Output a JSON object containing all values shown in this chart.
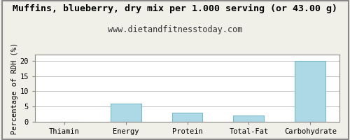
{
  "title": "Muffins, blueberry, dry mix per 1.000 serving (or 43.00 g)",
  "subtitle": "www.dietandfitnesstoday.com",
  "categories": [
    "Thiamin",
    "Energy",
    "Protein",
    "Total-Fat",
    "Carbohydrate"
  ],
  "values": [
    0,
    6,
    3,
    2,
    20
  ],
  "bar_color": "#add8e6",
  "bar_edge_color": "#7ab8cc",
  "ylabel": "Percentage of RDH (%)",
  "ylim": [
    0,
    22
  ],
  "yticks": [
    0,
    5,
    10,
    15,
    20
  ],
  "background_color": "#ffffff",
  "outer_bg": "#f0f0e8",
  "title_fontsize": 9.5,
  "subtitle_fontsize": 8.5,
  "ylabel_fontsize": 7.5,
  "tick_fontsize": 7.5,
  "bar_width": 0.5
}
